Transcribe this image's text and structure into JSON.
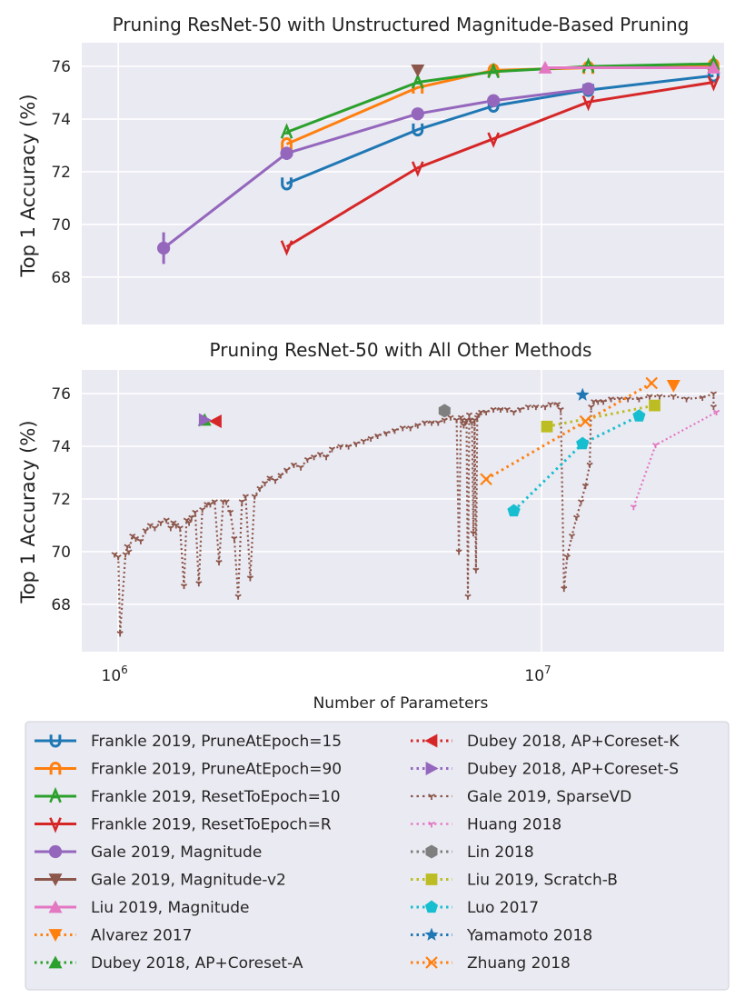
{
  "chart_data": [
    {
      "type": "line",
      "title": "Pruning ResNet-50 with Unstructured Magnitude-Based Pruning",
      "xlabel": "",
      "ylabel": "Top 1 Accuracy (%)",
      "xscale": "log",
      "xlim": [
        820000,
        27000000
      ],
      "ylim": [
        66.2,
        76.9
      ],
      "yticks": [
        68,
        70,
        72,
        74,
        76
      ],
      "series": [
        {
          "name": "Frankle 2019, PruneAtEpoch=15",
          "color": "#1f77b4",
          "marker": "u",
          "linestyle": "solid",
          "x": [
            2500000,
            5100000,
            7700000,
            12900000,
            25500000
          ],
          "y": [
            71.55,
            73.6,
            74.5,
            75.1,
            75.65
          ]
        },
        {
          "name": "Frankle 2019, PruneAtEpoch=90",
          "color": "#ff7f0e",
          "marker": "n",
          "linestyle": "solid",
          "x": [
            2500000,
            5100000,
            7700000,
            12900000,
            25500000
          ],
          "y": [
            73.05,
            75.2,
            75.85,
            75.95,
            76.05
          ]
        },
        {
          "name": "Frankle 2019, ResetToEpoch=10",
          "color": "#2ca02c",
          "marker": "A",
          "linestyle": "solid",
          "x": [
            2500000,
            5100000,
            7700000,
            12900000,
            25500000
          ],
          "y": [
            73.5,
            75.4,
            75.8,
            76.0,
            76.1
          ]
        },
        {
          "name": "Frankle 2019, ResetToEpoch=R",
          "color": "#d62728",
          "marker": "v",
          "linestyle": "solid",
          "x": [
            2500000,
            5100000,
            7700000,
            12900000,
            25500000
          ],
          "y": [
            69.15,
            72.15,
            73.25,
            74.65,
            75.4
          ]
        },
        {
          "name": "Gale 2019, Magnitude",
          "color": "#9467bd",
          "marker": "circle",
          "linestyle": "solid",
          "x": [
            1280000,
            2500000,
            5100000,
            7700000,
            12900000
          ],
          "y": [
            69.1,
            72.7,
            74.2,
            74.7,
            75.15
          ],
          "yerr": [
            0.6,
            0.25,
            0.2,
            0.15,
            0.1
          ]
        },
        {
          "name": "Gale 2019, Magnitude-v2",
          "color": "#8c564b",
          "marker": "triangle-down",
          "linestyle": "none",
          "x": [
            5100000
          ],
          "y": [
            75.85
          ]
        },
        {
          "name": "Liu 2019, Magnitude",
          "color": "#e377c2",
          "marker": "triangle-up",
          "linestyle": "solid",
          "x": [
            10200000,
            25500000
          ],
          "y": [
            75.95,
            75.95
          ]
        }
      ]
    },
    {
      "type": "line",
      "title": "Pruning ResNet-50 with All Other Methods",
      "xlabel": "Number of Parameters",
      "ylabel": "Top 1 Accuracy (%)",
      "xscale": "log",
      "xlim": [
        820000,
        27000000
      ],
      "ylim": [
        66.2,
        76.9
      ],
      "yticks": [
        68,
        70,
        72,
        74,
        76
      ],
      "xticks": [
        1000000,
        10000000
      ],
      "xticklabels": [
        [
          "10",
          "6"
        ],
        [
          "10",
          "7"
        ]
      ],
      "series": [
        {
          "name": "Alvarez 2017",
          "color": "#ff7f0e",
          "marker": "triangle-down",
          "linestyle": "dotted",
          "x": [
            20500000
          ],
          "y": [
            76.3
          ]
        },
        {
          "name": "Dubey 2018, AP+Coreset-A",
          "color": "#2ca02c",
          "marker": "triangle-up",
          "linestyle": "dotted",
          "x": [
            1600000
          ],
          "y": [
            75.0
          ]
        },
        {
          "name": "Dubey 2018, AP+Coreset-K",
          "color": "#d62728",
          "marker": "triangle-left",
          "linestyle": "dotted",
          "x": [
            1700000
          ],
          "y": [
            74.95
          ]
        },
        {
          "name": "Dubey 2018, AP+Coreset-S",
          "color": "#9467bd",
          "marker": "triangle-right",
          "linestyle": "dotted",
          "x": [
            1600000
          ],
          "y": [
            75.0
          ]
        },
        {
          "name": "Gale 2019, SparseVD",
          "color": "#8c564b",
          "marker": "tri",
          "linestyle": "dotted",
          "x": [
            980000,
            1000000,
            1010000,
            1040000,
            1050000,
            1060000,
            1080000,
            1100000,
            1130000,
            1160000,
            1190000,
            1220000,
            1260000,
            1300000,
            1330000,
            1350000,
            1370000,
            1400000,
            1430000,
            1450000,
            1470000,
            1490000,
            1520000,
            1550000,
            1580000,
            1620000,
            1650000,
            1690000,
            1730000,
            1770000,
            1800000,
            1840000,
            1880000,
            1920000,
            1960000,
            2000000,
            2050000,
            2100000,
            2160000,
            2220000,
            2280000,
            2350000,
            2420000,
            2500000,
            2600000,
            2700000,
            2800000,
            2900000,
            3000000,
            3100000,
            3200000,
            3350000,
            3500000,
            3650000,
            3800000,
            3950000,
            4100000,
            4300000,
            4500000,
            4700000,
            4900000,
            5100000,
            5300000,
            5500000,
            5700000,
            5900000,
            6100000,
            6300000,
            6380000,
            6450000,
            6500000,
            6550000,
            6600000,
            6650000,
            6700000,
            6750000,
            6800000,
            6850000,
            6900000,
            6950000,
            7000000,
            7050000,
            7100000,
            7200000,
            7400000,
            7700000,
            8000000,
            8300000,
            8600000,
            8900000,
            9300000,
            9700000,
            10200000,
            10500000,
            10900000,
            11100000,
            11300000,
            11500000,
            11800000,
            12100000,
            12400000,
            12700000,
            13000000,
            13100000,
            13300000,
            13600000,
            14000000,
            14600000,
            15300000,
            16000000,
            17000000,
            18000000,
            19000000,
            20500000,
            22000000,
            24000000,
            25500000,
            25500000
          ],
          "y": [
            69.9,
            69.8,
            66.9,
            69.9,
            70.2,
            70.0,
            70.6,
            70.5,
            70.4,
            70.8,
            71.0,
            70.9,
            71.1,
            71.2,
            70.9,
            71.1,
            71.0,
            70.9,
            68.7,
            71.2,
            71.1,
            71.3,
            71.5,
            68.8,
            71.6,
            71.8,
            71.8,
            71.9,
            69.6,
            71.9,
            71.9,
            71.5,
            70.5,
            68.3,
            71.9,
            72.1,
            69.0,
            72.1,
            72.4,
            72.6,
            72.8,
            72.7,
            72.9,
            73.1,
            73.3,
            73.2,
            73.5,
            73.6,
            73.7,
            73.6,
            73.9,
            74.0,
            74.0,
            74.1,
            74.2,
            74.3,
            74.4,
            74.5,
            74.6,
            74.7,
            74.7,
            74.8,
            74.9,
            74.9,
            74.9,
            75.0,
            75.1,
            75.0,
            70.0,
            75.1,
            75.0,
            74.8,
            74.9,
            75.0,
            68.3,
            75.2,
            75.0,
            74.9,
            70.7,
            75.0,
            69.3,
            75.1,
            75.2,
            75.3,
            75.3,
            75.4,
            75.4,
            75.4,
            75.3,
            75.4,
            75.5,
            75.5,
            75.5,
            75.6,
            75.6,
            75.4,
            68.6,
            69.8,
            70.6,
            71.3,
            71.9,
            72.5,
            73.3,
            75.5,
            75.7,
            75.7,
            75.7,
            75.8,
            75.8,
            75.8,
            75.8,
            75.9,
            75.9,
            75.9,
            75.8,
            75.85,
            76.0,
            75.5
          ]
        },
        {
          "name": "Huang 2018",
          "color": "#e377c2",
          "marker": "tri",
          "linestyle": "dotted",
          "x": [
            16500000,
            18600000,
            25900000
          ],
          "y": [
            71.7,
            74.05,
            75.3
          ]
        },
        {
          "name": "Lin 2018",
          "color": "#7f7f7f",
          "marker": "hexagon",
          "linestyle": "dotted",
          "x": [
            5900000
          ],
          "y": [
            75.35
          ]
        },
        {
          "name": "Liu 2019, Scratch-B",
          "color": "#bcbd22",
          "marker": "square",
          "linestyle": "dotted",
          "x": [
            10300000,
            18500000
          ],
          "y": [
            74.75,
            75.55
          ]
        },
        {
          "name": "Luo 2017",
          "color": "#17becf",
          "marker": "pentagon",
          "linestyle": "dotted",
          "x": [
            8600000,
            12500000,
            17000000
          ],
          "y": [
            71.55,
            74.1,
            75.15
          ]
        },
        {
          "name": "Yamamoto 2018",
          "color": "#1f77b4",
          "marker": "star",
          "linestyle": "dotted",
          "x": [
            12500000
          ],
          "y": [
            75.95
          ]
        },
        {
          "name": "Zhuang 2018",
          "color": "#ff7f0e",
          "marker": "x",
          "linestyle": "dotted",
          "x": [
            7400000,
            12700000,
            18200000
          ],
          "y": [
            72.75,
            74.95,
            76.4
          ]
        }
      ]
    }
  ],
  "legend": {
    "placement": "bottom",
    "columns": [
      [
        "Frankle 2019, PruneAtEpoch=15",
        "Frankle 2019, PruneAtEpoch=90",
        "Frankle 2019, ResetToEpoch=10",
        "Frankle 2019, ResetToEpoch=R",
        "Gale 2019, Magnitude",
        "Gale 2019, Magnitude-v2",
        "Liu 2019, Magnitude",
        "Alvarez 2017",
        "Dubey 2018, AP+Coreset-A"
      ],
      [
        "Dubey 2018, AP+Coreset-K",
        "Dubey 2018, AP+Coreset-S",
        "Gale 2019, SparseVD",
        "Huang 2018",
        "Lin 2018",
        "Liu 2019, Scratch-B",
        "Luo 2017",
        "Yamamoto 2018",
        "Zhuang 2018"
      ]
    ]
  }
}
